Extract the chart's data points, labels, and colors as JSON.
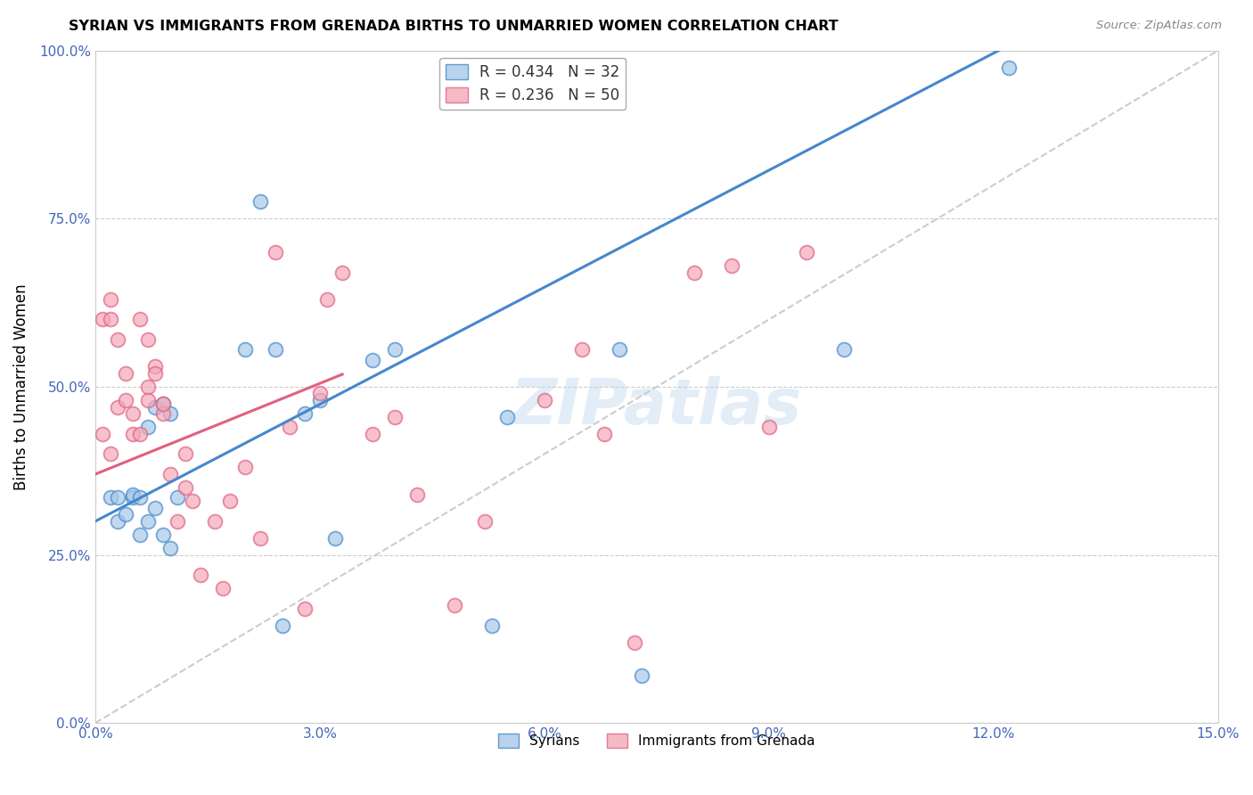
{
  "title": "SYRIAN VS IMMIGRANTS FROM GRENADA BIRTHS TO UNMARRIED WOMEN CORRELATION CHART",
  "source": "Source: ZipAtlas.com",
  "ylabel": "Births to Unmarried Women",
  "xmin": 0.0,
  "xmax": 0.15,
  "ymin": 0.0,
  "ymax": 1.0,
  "yticks": [
    0.0,
    0.25,
    0.5,
    0.75,
    1.0
  ],
  "xticks": [
    0.0,
    0.03,
    0.06,
    0.09,
    0.12,
    0.15
  ],
  "blue_color": "#A8C8E8",
  "pink_color": "#F4A8B8",
  "blue_edge_color": "#4488CC",
  "pink_edge_color": "#E06080",
  "blue_line_color": "#4488CC",
  "pink_line_color": "#E06080",
  "diag_color": "#CCCCCC",
  "grid_color": "#CCCCCC",
  "axis_color": "#4466BB",
  "watermark": "ZIPatlas",
  "syrians_x": [
    0.002,
    0.003,
    0.003,
    0.004,
    0.005,
    0.005,
    0.006,
    0.006,
    0.007,
    0.007,
    0.008,
    0.008,
    0.009,
    0.009,
    0.01,
    0.01,
    0.011,
    0.02,
    0.022,
    0.024,
    0.025,
    0.028,
    0.03,
    0.032,
    0.037,
    0.04,
    0.053,
    0.055,
    0.07,
    0.073,
    0.1,
    0.122
  ],
  "syrians_y": [
    0.335,
    0.3,
    0.335,
    0.31,
    0.335,
    0.34,
    0.335,
    0.28,
    0.44,
    0.3,
    0.47,
    0.32,
    0.28,
    0.475,
    0.46,
    0.26,
    0.335,
    0.555,
    0.775,
    0.555,
    0.145,
    0.46,
    0.48,
    0.275,
    0.54,
    0.555,
    0.145,
    0.455,
    0.555,
    0.07,
    0.555,
    0.975
  ],
  "grenada_x": [
    0.001,
    0.001,
    0.002,
    0.002,
    0.002,
    0.003,
    0.003,
    0.004,
    0.004,
    0.005,
    0.005,
    0.006,
    0.006,
    0.007,
    0.007,
    0.007,
    0.008,
    0.008,
    0.009,
    0.009,
    0.01,
    0.011,
    0.012,
    0.012,
    0.013,
    0.014,
    0.016,
    0.017,
    0.018,
    0.02,
    0.022,
    0.024,
    0.026,
    0.028,
    0.03,
    0.031,
    0.033,
    0.037,
    0.04,
    0.043,
    0.048,
    0.052,
    0.06,
    0.065,
    0.068,
    0.072,
    0.08,
    0.085,
    0.09,
    0.095
  ],
  "grenada_y": [
    0.43,
    0.6,
    0.4,
    0.6,
    0.63,
    0.47,
    0.57,
    0.52,
    0.48,
    0.46,
    0.43,
    0.43,
    0.6,
    0.57,
    0.5,
    0.48,
    0.53,
    0.52,
    0.46,
    0.475,
    0.37,
    0.3,
    0.35,
    0.4,
    0.33,
    0.22,
    0.3,
    0.2,
    0.33,
    0.38,
    0.275,
    0.7,
    0.44,
    0.17,
    0.49,
    0.63,
    0.67,
    0.43,
    0.455,
    0.34,
    0.175,
    0.3,
    0.48,
    0.555,
    0.43,
    0.12,
    0.67,
    0.68,
    0.44,
    0.7
  ],
  "blue_intercept": 0.3,
  "blue_slope": 5.8,
  "pink_intercept": 0.37,
  "pink_slope": 4.5,
  "pink_line_xmax": 0.033
}
